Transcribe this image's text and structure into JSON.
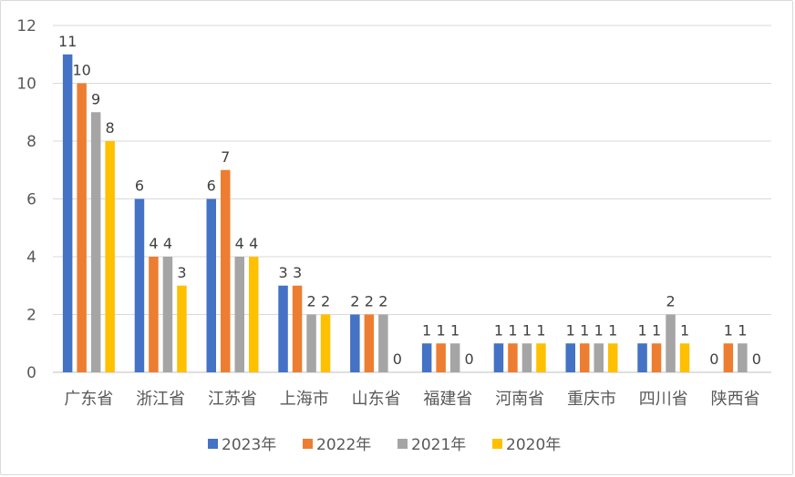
{
  "chart_data": {
    "type": "bar",
    "title": "",
    "xlabel": "",
    "ylabel": "",
    "ylim": [
      0,
      12
    ],
    "yticks": [
      0,
      2,
      4,
      6,
      8,
      10,
      12
    ],
    "grid": true,
    "legend_position": "bottom",
    "categories": [
      "广东省",
      "浙江省",
      "江苏省",
      "上海市",
      "山东省",
      "福建省",
      "河南省",
      "重庆市",
      "四川省",
      "陕西省"
    ],
    "series": [
      {
        "name": "2023年",
        "color": "#4472C4",
        "values": [
          11,
          6,
          6,
          3,
          2,
          1,
          1,
          1,
          1,
          0
        ]
      },
      {
        "name": "2022年",
        "color": "#ED7D31",
        "values": [
          10,
          4,
          7,
          3,
          2,
          1,
          1,
          1,
          1,
          1
        ]
      },
      {
        "name": "2021年",
        "color": "#A5A5A5",
        "values": [
          9,
          4,
          4,
          2,
          2,
          1,
          1,
          1,
          2,
          1
        ]
      },
      {
        "name": "2020年",
        "color": "#FFC000",
        "values": [
          8,
          3,
          4,
          2,
          0,
          0,
          1,
          1,
          1,
          0
        ]
      }
    ]
  }
}
